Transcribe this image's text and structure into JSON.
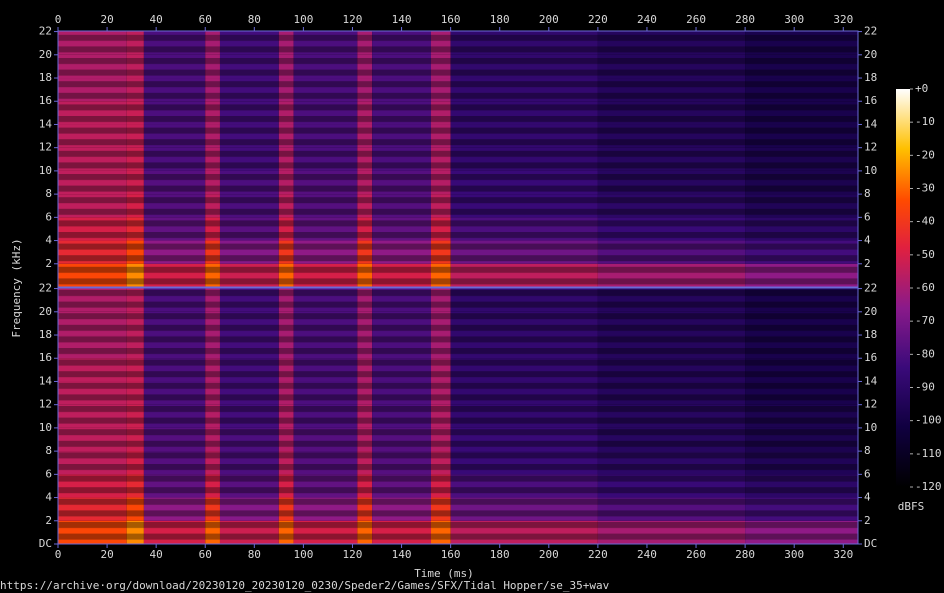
{
  "chart_data": [
    {
      "type": "heatmap",
      "channel": "top",
      "xlim": [
        0,
        326
      ],
      "xticks": [
        0,
        20,
        40,
        60,
        80,
        100,
        120,
        140,
        160,
        180,
        200,
        220,
        240,
        260,
        280,
        300,
        320
      ],
      "ylim": [
        0,
        22.05
      ],
      "yticks": [
        2,
        4,
        6,
        8,
        10,
        12,
        14,
        16,
        18,
        20,
        22
      ],
      "x_edges": [
        0,
        28,
        35,
        60,
        66,
        90,
        96,
        122,
        128,
        152,
        160,
        220,
        280,
        326
      ],
      "y_edges": [
        0,
        2,
        4,
        6,
        8,
        10,
        12,
        14,
        16,
        18,
        20,
        22.05
      ],
      "z": [
        [
          -35,
          -25,
          -50,
          -30,
          -52,
          -30,
          -50,
          -30,
          -50,
          -30,
          -55,
          -60,
          -65
        ],
        [
          -45,
          -35,
          -65,
          -40,
          -67,
          -40,
          -65,
          -40,
          -65,
          -40,
          -72,
          -78,
          -82
        ],
        [
          -50,
          -45,
          -75,
          -50,
          -77,
          -50,
          -75,
          -50,
          -75,
          -50,
          -80,
          -85,
          -90
        ],
        [
          -55,
          -50,
          -78,
          -55,
          -80,
          -55,
          -78,
          -55,
          -78,
          -55,
          -85,
          -90,
          -95
        ],
        [
          -55,
          -52,
          -78,
          -57,
          -80,
          -57,
          -78,
          -57,
          -78,
          -57,
          -85,
          -92,
          -97
        ],
        [
          -55,
          -52,
          -80,
          -57,
          -82,
          -57,
          -80,
          -57,
          -80,
          -57,
          -87,
          -92,
          -97
        ],
        [
          -55,
          -53,
          -80,
          -58,
          -82,
          -58,
          -80,
          -58,
          -80,
          -58,
          -87,
          -93,
          -98
        ],
        [
          -55,
          -53,
          -80,
          -58,
          -82,
          -58,
          -80,
          -58,
          -80,
          -58,
          -87,
          -93,
          -98
        ],
        [
          -58,
          -55,
          -80,
          -60,
          -82,
          -60,
          -80,
          -60,
          -80,
          -60,
          -87,
          -93,
          -98
        ],
        [
          -58,
          -55,
          -80,
          -60,
          -82,
          -60,
          -80,
          -60,
          -80,
          -60,
          -88,
          -93,
          -98
        ],
        [
          -58,
          -55,
          -80,
          -60,
          -82,
          -60,
          -80,
          -60,
          -80,
          -60,
          -88,
          -93,
          -98
        ]
      ]
    },
    {
      "type": "heatmap",
      "channel": "bottom",
      "x_label": "Time (ms)",
      "xlim": [
        0,
        326
      ],
      "xticks": [
        0,
        20,
        40,
        60,
        80,
        100,
        120,
        140,
        160,
        180,
        200,
        220,
        240,
        260,
        280,
        300,
        320
      ],
      "ylim": [
        0,
        22.05
      ],
      "yticks": [
        {
          "value": 0,
          "label": "DC"
        },
        2,
        4,
        6,
        8,
        10,
        12,
        14,
        16,
        18,
        20,
        22
      ],
      "x_edges": [
        0,
        28,
        35,
        60,
        66,
        90,
        96,
        122,
        128,
        152,
        160,
        220,
        280,
        326
      ],
      "y_edges": [
        0,
        2,
        4,
        6,
        8,
        10,
        12,
        14,
        16,
        18,
        20,
        22.05
      ],
      "z": [
        [
          -35,
          -25,
          -50,
          -30,
          -52,
          -30,
          -50,
          -30,
          -50,
          -30,
          -55,
          -60,
          -65
        ],
        [
          -45,
          -35,
          -65,
          -40,
          -67,
          -40,
          -65,
          -40,
          -65,
          -40,
          -72,
          -78,
          -82
        ],
        [
          -50,
          -45,
          -75,
          -50,
          -77,
          -50,
          -75,
          -50,
          -75,
          -50,
          -80,
          -85,
          -90
        ],
        [
          -55,
          -50,
          -78,
          -55,
          -80,
          -55,
          -78,
          -55,
          -78,
          -55,
          -85,
          -90,
          -95
        ],
        [
          -55,
          -52,
          -78,
          -57,
          -80,
          -57,
          -78,
          -57,
          -78,
          -57,
          -85,
          -92,
          -97
        ],
        [
          -55,
          -52,
          -80,
          -57,
          -82,
          -57,
          -80,
          -57,
          -80,
          -57,
          -87,
          -92,
          -97
        ],
        [
          -55,
          -53,
          -80,
          -58,
          -82,
          -58,
          -80,
          -58,
          -80,
          -58,
          -87,
          -93,
          -98
        ],
        [
          -55,
          -53,
          -80,
          -58,
          -82,
          -58,
          -80,
          -58,
          -80,
          -58,
          -87,
          -93,
          -98
        ],
        [
          -58,
          -55,
          -80,
          -60,
          -82,
          -60,
          -80,
          -60,
          -80,
          -60,
          -87,
          -93,
          -98
        ],
        [
          -58,
          -55,
          -80,
          -60,
          -82,
          -60,
          -80,
          -60,
          -80,
          -60,
          -88,
          -93,
          -98
        ],
        [
          -58,
          -55,
          -80,
          -60,
          -82,
          -60,
          -80,
          -60,
          -80,
          -60,
          -88,
          -93,
          -98
        ]
      ]
    }
  ],
  "y_label": "Frequency (kHz)",
  "colorbar": {
    "lim": [
      -120,
      0
    ],
    "label": "dBFS",
    "ticks": [
      {
        "value": 0,
        "label": "+0"
      },
      -10,
      -20,
      -30,
      -40,
      -50,
      -60,
      -70,
      -80,
      -90,
      -100,
      -110,
      -120
    ]
  },
  "footer": "https://archive·org/download/20230120_20230120_0230/Speder2/Games/SFX/Tidal Hopper/se_35+wav"
}
